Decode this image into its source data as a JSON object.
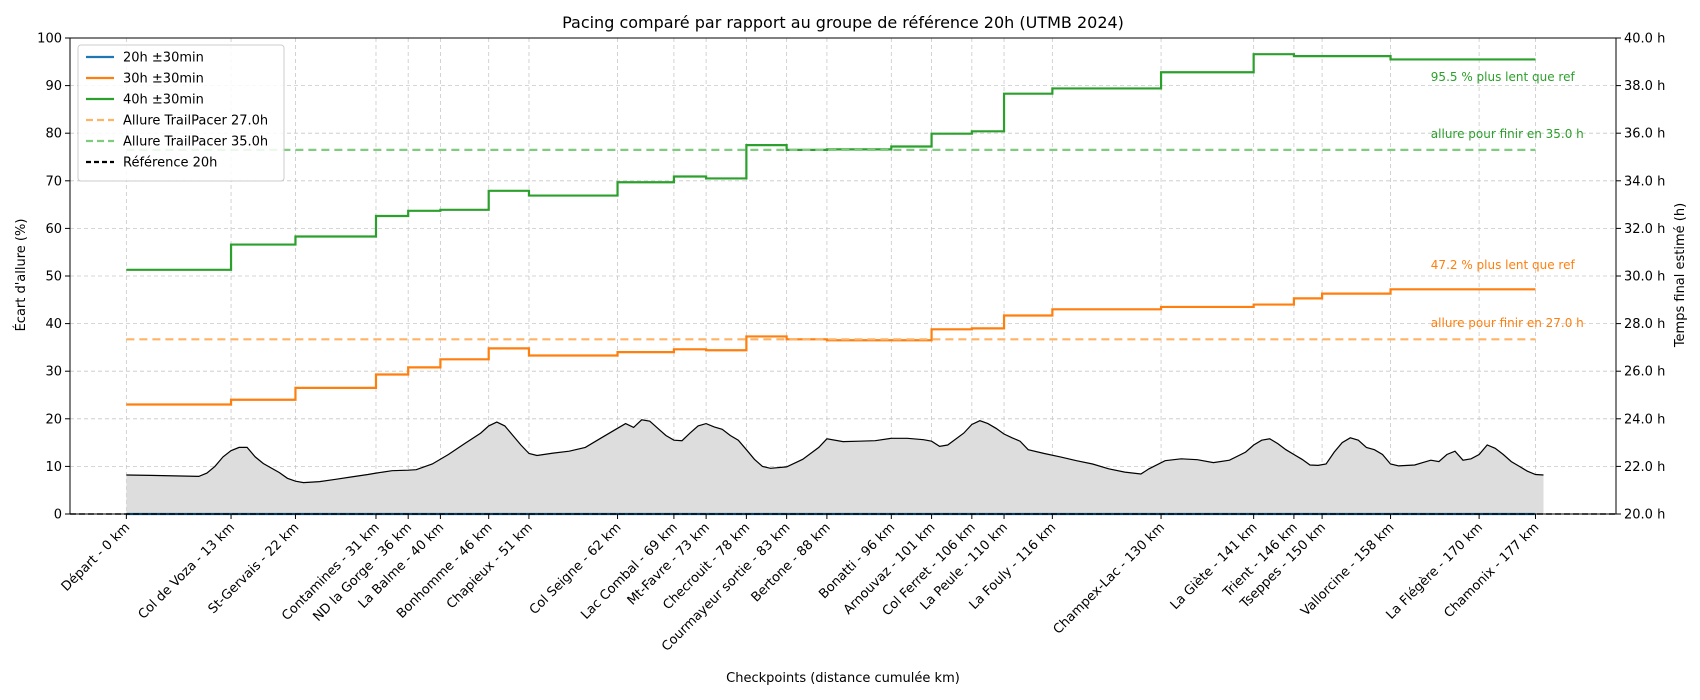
{
  "chart_data": {
    "type": "line",
    "title": "Pacing comparé par rapport au groupe de référence 20h (UTMB 2024)",
    "xlabel": "Checkpoints (distance cumulée km)",
    "ylabel": "Écart d'allure  (%)",
    "y2label": "Temps final estimé (h)",
    "xlim": [
      -7,
      185
    ],
    "ylim": [
      0,
      100
    ],
    "y2lim": [
      20,
      40
    ],
    "y_ticks": [
      0,
      10,
      20,
      30,
      40,
      50,
      60,
      70,
      80,
      90,
      100
    ],
    "y2_ticks": [
      "20.0 h",
      "22.0 h",
      "24.0 h",
      "26.0 h",
      "28.0 h",
      "30.0 h",
      "32.0 h",
      "34.0 h",
      "36.0 h",
      "38.0 h",
      "40.0 h"
    ],
    "y2_tick_values": [
      20,
      22,
      24,
      26,
      28,
      30,
      32,
      34,
      36,
      38,
      40
    ],
    "grid": true,
    "legend_position": "top-left",
    "checkpoints": [
      {
        "km": 0,
        "label": "Départ - 0 km"
      },
      {
        "km": 13,
        "label": "Col de Voza - 13 km"
      },
      {
        "km": 21,
        "label": "St-Gervais - 22 km"
      },
      {
        "km": 31,
        "label": "Contamines - 31 km"
      },
      {
        "km": 35,
        "label": "ND la Gorge - 36 km"
      },
      {
        "km": 39,
        "label": "La Balme - 40 km"
      },
      {
        "km": 45,
        "label": "Bonhomme - 46 km"
      },
      {
        "km": 50,
        "label": "Chapieux - 51 km"
      },
      {
        "km": 61,
        "label": "Col Seigne - 62 km"
      },
      {
        "km": 68,
        "label": "Lac Combal - 69 km"
      },
      {
        "km": 72,
        "label": "Mt-Favre - 73 km"
      },
      {
        "km": 77,
        "label": "Checrouit - 78 km"
      },
      {
        "km": 82,
        "label": "Courmayeur sortie - 83 km"
      },
      {
        "km": 87,
        "label": "Bertone - 88 km"
      },
      {
        "km": 95,
        "label": "Bonatti - 96 km"
      },
      {
        "km": 100,
        "label": "Arnouvaz - 101 km"
      },
      {
        "km": 105,
        "label": "Col Ferret - 106 km"
      },
      {
        "km": 109,
        "label": "La Peule - 110 km"
      },
      {
        "km": 115,
        "label": "La Fouly - 116 km"
      },
      {
        "km": 128.5,
        "label": "Champex-Lac - 130 km"
      },
      {
        "km": 140,
        "label": "La Giète - 141 km"
      },
      {
        "km": 145,
        "label": "Trient - 146 km"
      },
      {
        "km": 148.5,
        "label": "Tseppes - 150 km"
      },
      {
        "km": 157,
        "label": "Vallorcine - 158 km"
      },
      {
        "km": 168,
        "label": "La Flégère - 170 km"
      },
      {
        "km": 175,
        "label": "Chamonix - 177 km"
      }
    ],
    "series": [
      {
        "name": "20h ±30min",
        "color": "#1f77b4",
        "style": "step",
        "values": [
          0,
          0,
          0,
          0,
          0,
          0,
          0,
          0,
          0,
          0,
          0,
          0,
          0,
          0,
          0,
          0,
          0,
          0,
          0,
          0,
          0,
          0,
          0,
          0,
          0,
          0
        ]
      },
      {
        "name": "30h ±30min",
        "color": "#ff7f0e",
        "style": "step",
        "values": [
          23.0,
          24.0,
          26.5,
          29.3,
          30.8,
          32.5,
          34.8,
          33.3,
          34.0,
          34.6,
          34.4,
          37.3,
          36.7,
          36.5,
          36.5,
          38.8,
          39.0,
          41.7,
          43.0,
          43.5,
          44.0,
          45.3,
          46.3,
          47.2,
          47.2,
          47.2
        ]
      },
      {
        "name": "40h ±30min",
        "color": "#2ca02c",
        "style": "step",
        "values": [
          51.3,
          56.6,
          58.3,
          62.6,
          63.7,
          63.9,
          67.9,
          66.9,
          69.7,
          70.9,
          70.5,
          77.5,
          76.5,
          76.6,
          77.2,
          79.9,
          80.4,
          88.3,
          89.4,
          92.8,
          96.6,
          96.2,
          96.2,
          95.5,
          95.5,
          95.5
        ]
      },
      {
        "name": "Allure TrailPacer 27.0h",
        "color": "#ffb366",
        "style": "dashed",
        "value": 36.7
      },
      {
        "name": "Allure TrailPacer 35.0h",
        "color": "#7fcc7f",
        "style": "dashed",
        "value": 76.5
      },
      {
        "name": "Référence 20h",
        "color": "#000000",
        "style": "dashed",
        "value": 0
      }
    ],
    "annotations": [
      {
        "text": "95.5 % plus lent que ref",
        "color": "#2ca02c",
        "x": 162,
        "y": 91
      },
      {
        "text": "allure pour finir en 35.0 h",
        "color": "#2ca02c",
        "x": 162,
        "y": 79
      },
      {
        "text": "47.2 % plus lent que ref",
        "color": "#ff7f0e",
        "x": 162,
        "y": 51.5
      },
      {
        "text": "allure pour finir en 27.0 h",
        "color": "#ff7f0e",
        "x": 162,
        "y": 39.3
      }
    ],
    "elevation_profile": {
      "color": "#dddddd",
      "points": [
        [
          0,
          8.2
        ],
        [
          3,
          8.1
        ],
        [
          6,
          8.0
        ],
        [
          9,
          7.9
        ],
        [
          10,
          8.6
        ],
        [
          11,
          10.0
        ],
        [
          12,
          12.0
        ],
        [
          13,
          13.3
        ],
        [
          14,
          14.0
        ],
        [
          15,
          14.0
        ],
        [
          16,
          12.0
        ],
        [
          17,
          10.6
        ],
        [
          19,
          8.7
        ],
        [
          20,
          7.5
        ],
        [
          21,
          6.9
        ],
        [
          22,
          6.6
        ],
        [
          24,
          6.8
        ],
        [
          26,
          7.3
        ],
        [
          28,
          7.8
        ],
        [
          30,
          8.3
        ],
        [
          31,
          8.6
        ],
        [
          33,
          9.1
        ],
        [
          35,
          9.2
        ],
        [
          36,
          9.3
        ],
        [
          38,
          10.5
        ],
        [
          40,
          12.5
        ],
        [
          42,
          14.8
        ],
        [
          44,
          17.0
        ],
        [
          45,
          18.5
        ],
        [
          46,
          19.3
        ],
        [
          47,
          18.5
        ],
        [
          48,
          16.5
        ],
        [
          49,
          14.5
        ],
        [
          50,
          12.7
        ],
        [
          51,
          12.3
        ],
        [
          53,
          12.8
        ],
        [
          55,
          13.2
        ],
        [
          57,
          14.0
        ],
        [
          59,
          16.0
        ],
        [
          61,
          18.0
        ],
        [
          62,
          19.0
        ],
        [
          63,
          18.2
        ],
        [
          64,
          19.8
        ],
        [
          65,
          19.5
        ],
        [
          66,
          18.0
        ],
        [
          67,
          16.5
        ],
        [
          68,
          15.5
        ],
        [
          69,
          15.4
        ],
        [
          70,
          17.0
        ],
        [
          71,
          18.5
        ],
        [
          72,
          19.0
        ],
        [
          73,
          18.3
        ],
        [
          74,
          17.8
        ],
        [
          75,
          16.5
        ],
        [
          76,
          15.5
        ],
        [
          77,
          13.5
        ],
        [
          78,
          11.5
        ],
        [
          79,
          10.0
        ],
        [
          80,
          9.6
        ],
        [
          82,
          9.9
        ],
        [
          84,
          11.5
        ],
        [
          86,
          14.0
        ],
        [
          87,
          15.8
        ],
        [
          89,
          15.2
        ],
        [
          91,
          15.3
        ],
        [
          93,
          15.4
        ],
        [
          95,
          15.9
        ],
        [
          97,
          15.9
        ],
        [
          99,
          15.6
        ],
        [
          100,
          15.3
        ],
        [
          101,
          14.2
        ],
        [
          102,
          14.5
        ],
        [
          104,
          17.0
        ],
        [
          105,
          18.8
        ],
        [
          106,
          19.6
        ],
        [
          107,
          19.0
        ],
        [
          108,
          18.0
        ],
        [
          109,
          16.8
        ],
        [
          110,
          16.0
        ],
        [
          111,
          15.3
        ],
        [
          112,
          13.5
        ],
        [
          114,
          12.7
        ],
        [
          116,
          12.0
        ],
        [
          118,
          11.2
        ],
        [
          120,
          10.5
        ],
        [
          122,
          9.5
        ],
        [
          124,
          8.8
        ],
        [
          126,
          8.4
        ],
        [
          127,
          9.5
        ],
        [
          129,
          11.2
        ],
        [
          131,
          11.6
        ],
        [
          133,
          11.4
        ],
        [
          135,
          10.8
        ],
        [
          137,
          11.3
        ],
        [
          139,
          13.0
        ],
        [
          140,
          14.5
        ],
        [
          141,
          15.5
        ],
        [
          142,
          15.8
        ],
        [
          143,
          14.8
        ],
        [
          144,
          13.5
        ],
        [
          145,
          12.5
        ],
        [
          146,
          11.5
        ],
        [
          147,
          10.3
        ],
        [
          148,
          10.2
        ],
        [
          149,
          10.5
        ],
        [
          150,
          13.0
        ],
        [
          151,
          15.0
        ],
        [
          152,
          16.0
        ],
        [
          153,
          15.5
        ],
        [
          154,
          14.0
        ],
        [
          155,
          13.5
        ],
        [
          156,
          12.5
        ],
        [
          157,
          10.5
        ],
        [
          158,
          10.1
        ],
        [
          160,
          10.3
        ],
        [
          161,
          10.8
        ],
        [
          162,
          11.3
        ],
        [
          163,
          11.0
        ],
        [
          164,
          12.5
        ],
        [
          165,
          13.2
        ],
        [
          166,
          11.3
        ],
        [
          167,
          11.6
        ],
        [
          168,
          12.5
        ],
        [
          169,
          14.5
        ],
        [
          170,
          13.8
        ],
        [
          171,
          12.5
        ],
        [
          172,
          11.0
        ],
        [
          173,
          10.0
        ],
        [
          174,
          9.0
        ],
        [
          175,
          8.3
        ],
        [
          176,
          8.2
        ]
      ]
    }
  }
}
